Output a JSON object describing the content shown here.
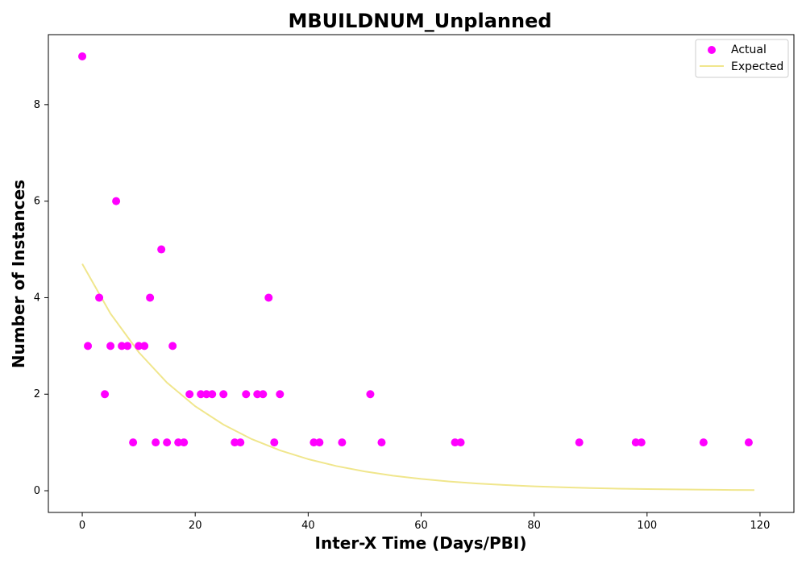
{
  "chart_data": {
    "type": "scatter",
    "title": "MBUILDNUM_Unplanned",
    "xlabel": "Inter-X Time (Days/PBI)",
    "ylabel": "Number of Instances",
    "xlim": [
      -6,
      126
    ],
    "ylim": [
      -0.45,
      9.45
    ],
    "xticks": [
      0,
      20,
      40,
      60,
      80,
      100,
      120
    ],
    "yticks": [
      0,
      2,
      4,
      6,
      8
    ],
    "xtick_labels": [
      "0",
      "20",
      "40",
      "60",
      "80",
      "100",
      "120"
    ],
    "ytick_labels": [
      "0",
      "2",
      "4",
      "6",
      "8"
    ],
    "grid": false,
    "legend_position": "top-right",
    "series": [
      {
        "name": "Actual",
        "kind": "scatter",
        "color": "#ff00ff",
        "x": [
          0,
          1,
          3,
          4,
          5,
          6,
          7,
          8,
          9,
          10,
          11,
          12,
          13,
          14,
          15,
          16,
          17,
          18,
          19,
          21,
          22,
          23,
          25,
          27,
          28,
          29,
          31,
          32,
          33,
          34,
          35,
          41,
          42,
          46,
          51,
          53,
          66,
          67,
          88,
          98,
          99,
          110,
          118
        ],
        "y": [
          9,
          3,
          4,
          2,
          3,
          6,
          3,
          3,
          1,
          3,
          3,
          4,
          1,
          5,
          1,
          3,
          1,
          1,
          2,
          2,
          2,
          2,
          2,
          1,
          1,
          2,
          2,
          2,
          4,
          1,
          2,
          1,
          1,
          1,
          2,
          1,
          1,
          1,
          1,
          1,
          1,
          1,
          1
        ]
      },
      {
        "name": "Expected",
        "kind": "line",
        "color": "#f0e68c",
        "x": [
          0,
          5,
          10,
          15,
          20,
          25,
          30,
          35,
          40,
          45,
          50,
          55,
          60,
          65,
          70,
          75,
          80,
          85,
          90,
          95,
          100,
          105,
          110,
          115,
          119
        ],
        "y": [
          4.7,
          3.67,
          2.87,
          2.24,
          1.75,
          1.37,
          1.07,
          0.836,
          0.654,
          0.511,
          0.399,
          0.312,
          0.244,
          0.191,
          0.149,
          0.117,
          0.091,
          0.071,
          0.056,
          0.043,
          0.034,
          0.027,
          0.021,
          0.016,
          0.013
        ]
      }
    ]
  }
}
